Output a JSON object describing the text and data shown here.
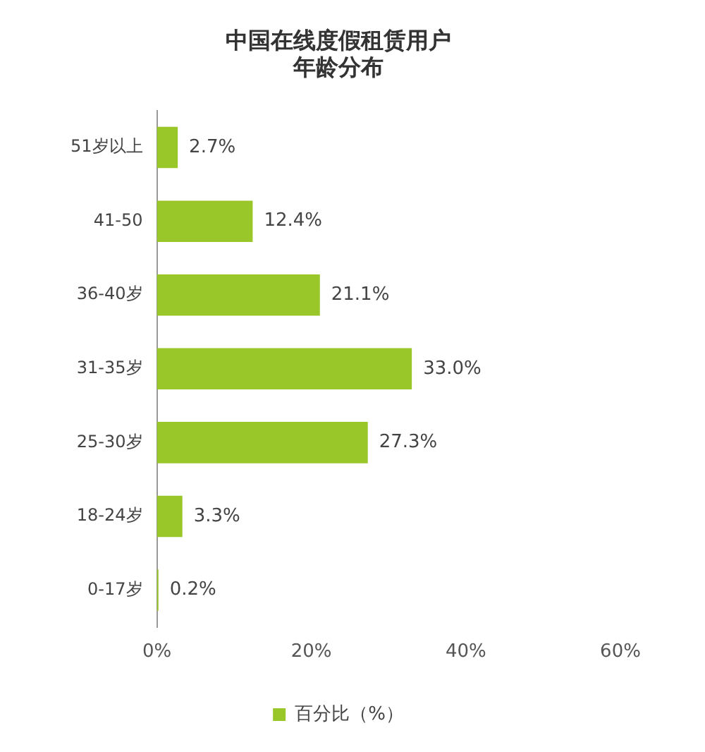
{
  "chart_data": {
    "type": "bar",
    "orientation": "horizontal",
    "title": "中国在线度假租赁用户年龄分布",
    "categories": [
      "51岁以上",
      "41-50",
      "36-40岁",
      "31-35岁",
      "25-30岁",
      "18-24岁",
      "0-17岁"
    ],
    "series": [
      {
        "name": "百分比（%）",
        "color": "#99c72a",
        "values": [
          2.7,
          12.4,
          21.1,
          33.0,
          27.3,
          3.3,
          0.2
        ],
        "value_labels": [
          "2.7%",
          "12.4%",
          "21.1%",
          "33.0%",
          "27.3%",
          "3.3%",
          "0.2%"
        ]
      }
    ],
    "xlim": [
      0,
      60
    ],
    "xticks": [
      {
        "value": 0,
        "label": "0%"
      },
      {
        "value": 20,
        "label": "20%"
      },
      {
        "value": 40,
        "label": "40%"
      },
      {
        "value": 60,
        "label": "60%"
      }
    ],
    "grid": false,
    "legend": "bottom"
  }
}
